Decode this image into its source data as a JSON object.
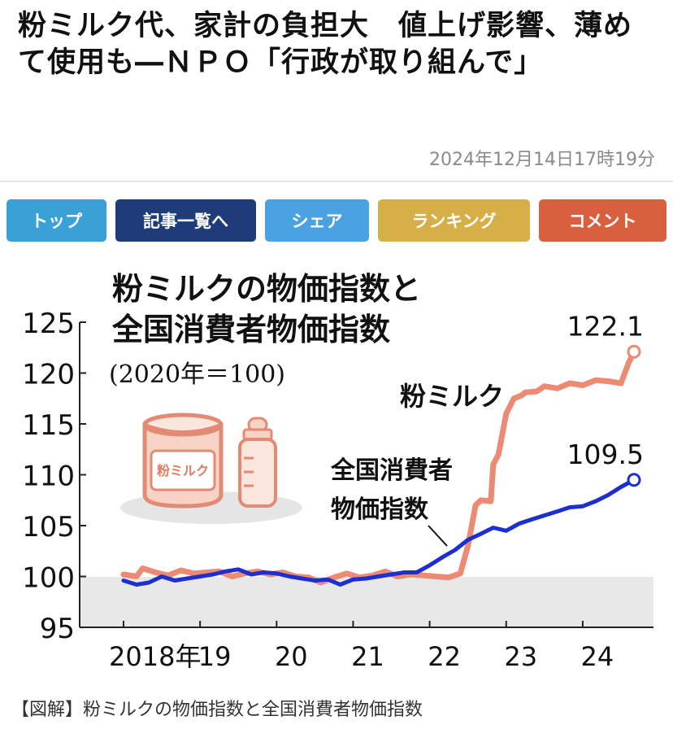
{
  "article": {
    "headline": "粉ミルク代、家計の負担大　値上げ影響、薄めて使用も―ＮＰＯ「行政が取り組んで」",
    "timestamp": "2024年12月14日17時19分"
  },
  "nav": {
    "top": "トップ",
    "list": "記事一覧へ",
    "share": "シェア",
    "ranking": "ランキング",
    "comment": "コメント"
  },
  "colors": {
    "top": "#3aa1d6",
    "list": "#1e3c7a",
    "share": "#4aa3e0",
    "ranking": "#d6b046",
    "comment": "#d9603f",
    "milk_line": "#ec8a73",
    "cpi_line": "#1d2fd1",
    "band": "#e8e8e8"
  },
  "chart_data": {
    "type": "line",
    "title_line1": "粉ミルクの物価指数と",
    "title_line2": "全国消費者物価指数",
    "subtitle": "(2020年＝100)",
    "y_ticks": [
      "125",
      "120",
      "115",
      "110",
      "105",
      "100",
      "95"
    ],
    "ylim": [
      95,
      125
    ],
    "xlim": [
      2018,
      2024.75
    ],
    "x_tick_labels": [
      "2018年",
      "19",
      "20",
      "21",
      "22",
      "23",
      "24"
    ],
    "x_tick_values": [
      2018,
      2019,
      2020,
      2021,
      2022,
      2023,
      2024
    ],
    "illustration_label": "粉ミルク",
    "series": [
      {
        "name": "粉ミルク",
        "end_label": "122.1",
        "x": [
          2018.0,
          2018.17,
          2018.25,
          2018.42,
          2018.58,
          2018.75,
          2018.92,
          2019.08,
          2019.25,
          2019.42,
          2019.58,
          2019.75,
          2019.92,
          2020.08,
          2020.25,
          2020.42,
          2020.58,
          2020.75,
          2020.92,
          2021.08,
          2021.25,
          2021.42,
          2021.58,
          2021.75,
          2021.92,
          2022.08,
          2022.25,
          2022.4,
          2022.5,
          2022.6,
          2022.67,
          2022.8,
          2022.83,
          2022.9,
          2023.0,
          2023.1,
          2023.2,
          2023.25,
          2023.4,
          2023.5,
          2023.67,
          2023.83,
          2024.0,
          2024.17,
          2024.33,
          2024.5,
          2024.6,
          2024.67
        ],
        "values": [
          100.2,
          100.0,
          100.8,
          100.4,
          100.1,
          100.6,
          100.3,
          100.4,
          100.5,
          100.0,
          100.3,
          100.5,
          100.2,
          100.4,
          100.0,
          99.9,
          99.4,
          99.9,
          100.3,
          99.9,
          100.1,
          100.5,
          100.0,
          100.2,
          100.1,
          100.0,
          99.9,
          100.3,
          103.0,
          107.0,
          107.5,
          107.4,
          111.0,
          112.0,
          116.0,
          117.5,
          117.8,
          118.1,
          118.2,
          118.7,
          118.5,
          119.0,
          118.8,
          119.3,
          119.2,
          119.0,
          121.0,
          122.1
        ]
      },
      {
        "name": "全国消費者物価指数",
        "end_label": "109.5",
        "x": [
          2018.0,
          2018.17,
          2018.33,
          2018.5,
          2018.67,
          2018.83,
          2019.0,
          2019.17,
          2019.33,
          2019.5,
          2019.67,
          2019.83,
          2020.0,
          2020.17,
          2020.33,
          2020.5,
          2020.67,
          2020.83,
          2021.0,
          2021.17,
          2021.33,
          2021.5,
          2021.67,
          2021.83,
          2022.0,
          2022.17,
          2022.33,
          2022.5,
          2022.67,
          2022.83,
          2023.0,
          2023.17,
          2023.33,
          2023.5,
          2023.67,
          2023.83,
          2024.0,
          2024.17,
          2024.33,
          2024.5,
          2024.67
        ],
        "values": [
          99.6,
          99.2,
          99.4,
          100.0,
          99.6,
          99.8,
          100.0,
          100.2,
          100.5,
          100.7,
          100.2,
          100.4,
          100.3,
          100.0,
          99.8,
          99.6,
          99.7,
          99.2,
          99.7,
          99.8,
          100.0,
          100.2,
          100.4,
          100.4,
          101.1,
          101.9,
          102.6,
          103.6,
          104.2,
          104.8,
          104.5,
          105.2,
          105.6,
          106.0,
          106.4,
          106.8,
          106.9,
          107.4,
          108.0,
          108.8,
          109.5
        ]
      }
    ]
  },
  "caption": "【図解】粉ミルクの物価指数と全国消費者物価指数"
}
